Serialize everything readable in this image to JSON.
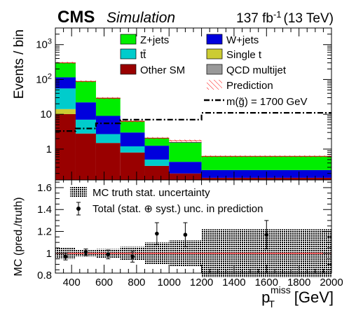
{
  "header": {
    "experiment": "CMS",
    "tag": "Simulation",
    "lumi_value": "137 fb",
    "lumi_exp": "-1",
    "lumi_energy": "(13 TeV)"
  },
  "chart_data": [
    {
      "type": "stacked-histogram",
      "ylabel": "Events / bin",
      "yscale": "log",
      "ylim": [
        0.13,
        3000
      ],
      "ytick_labels": [
        {
          "base": "10",
          "exp": "3",
          "value": 1000
        },
        {
          "base": "10",
          "exp": "2",
          "value": 100
        },
        {
          "base": "10",
          "exp": "",
          "value": 10
        },
        {
          "base": "1",
          "exp": "",
          "value": 1
        }
      ],
      "bin_edges": [
        300,
        425,
        550,
        700,
        850,
        1000,
        1200,
        2000
      ],
      "stack_order": [
        "qcd",
        "other_sm",
        "single_t",
        "ttbar",
        "w_jets",
        "z_jets"
      ],
      "series": [
        {
          "key": "qcd",
          "name": "QCD multijet",
          "color": "#999999",
          "values": [
            0.1,
            0.0,
            0.0,
            0.0,
            0.0,
            0.0,
            0.0
          ]
        },
        {
          "key": "other_sm",
          "name": "Other SM",
          "color": "#990000",
          "values": [
            10.0,
            2.8,
            1.5,
            0.8,
            0.33,
            0.2,
            0.15
          ]
        },
        {
          "key": "single_t",
          "name": "Single t",
          "color": "#cccc33",
          "values": [
            4.0,
            0.0,
            0.0,
            0.0,
            0.0,
            0.0,
            0.0
          ]
        },
        {
          "key": "ttbar",
          "name": "tt̄",
          "color": "#00cccc",
          "values": [
            41.0,
            4.2,
            1.2,
            0.4,
            0.17,
            0.0,
            0.0
          ]
        },
        {
          "key": "w_jets",
          "name": "W+jets",
          "color": "#0000dd",
          "values": [
            60.0,
            15.0,
            6.3,
            1.8,
            0.75,
            0.23,
            0.1
          ]
        },
        {
          "key": "z_jets",
          "name": "Z+jets",
          "color": "#00ee00",
          "values": [
            185.0,
            66.0,
            20.0,
            3.3,
            0.82,
            1.11,
            0.37
          ]
        }
      ],
      "prediction": {
        "name": "Prediction",
        "color": "#ff0000",
        "values": [
          300,
          88,
          29,
          6.3,
          2.07,
          1.74,
          0.62
        ]
      },
      "signal": {
        "name": "m(g̃) = 1700 GeV",
        "values": [
          3.3,
          3.9,
          5.5,
          7.0,
          7.0,
          7.0,
          11.0
        ]
      },
      "legend": [
        "z_jets",
        "w_jets",
        "ttbar",
        "single_t",
        "other_sm",
        "qcd",
        "prediction",
        "signal"
      ]
    },
    {
      "type": "ratio",
      "ylabel": "MC (pred./truth)",
      "xlabel_main": "p",
      "xlabel_sub": "T",
      "xlabel_sup": "miss",
      "xlabel_unit": "[GeV]",
      "xlim": [
        300,
        2000
      ],
      "ylim": [
        0.82,
        1.67
      ],
      "xticks": [
        400,
        600,
        800,
        1000,
        1200,
        1400,
        1600,
        1800,
        2000
      ],
      "yticks": [
        0.8,
        1,
        1.2,
        1.4,
        1.6
      ],
      "ytick_labels": [
        "0.8",
        "1",
        "1.2",
        "1.4",
        "1.6"
      ],
      "reference_line": 1,
      "mc_stat_band": [
        0.05,
        0.03,
        0.04,
        0.06,
        0.1,
        0.12,
        0.22
      ],
      "points": [
        {
          "x": 362.5,
          "y": 0.97,
          "err": 0.03
        },
        {
          "x": 487.5,
          "y": 1.01,
          "err": 0.03
        },
        {
          "x": 625,
          "y": 0.99,
          "err": 0.04
        },
        {
          "x": 775,
          "y": 0.97,
          "err": 0.05
        },
        {
          "x": 925,
          "y": 1.18,
          "err": 0.1
        },
        {
          "x": 1100,
          "y": 1.17,
          "err": 0.11
        },
        {
          "x": 1600,
          "y": 1.17,
          "err": 0.13
        }
      ],
      "legend": [
        {
          "key": "band",
          "name": "MC truth stat. uncertainty"
        },
        {
          "key": "points",
          "name": "Total (stat. ⊕ syst.) unc. in prediction"
        }
      ]
    }
  ]
}
